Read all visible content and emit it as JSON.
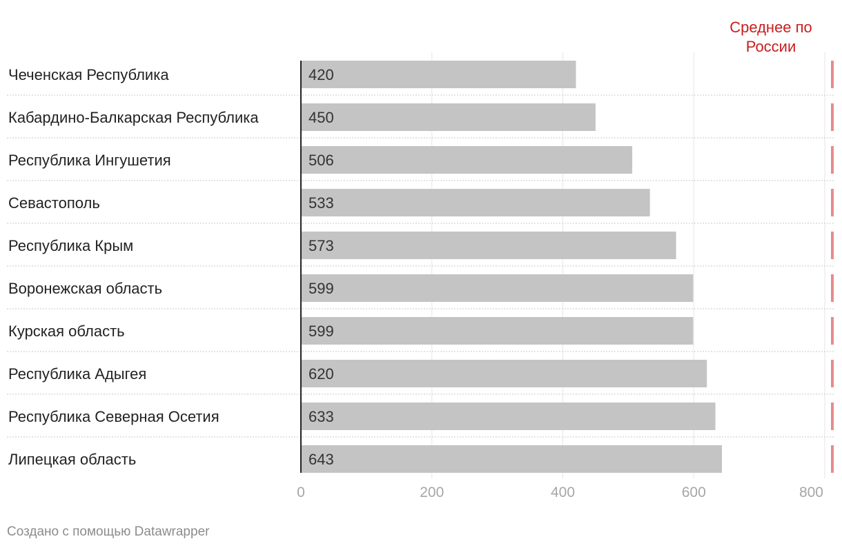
{
  "chart_data": {
    "type": "bar",
    "orientation": "horizontal",
    "categories": [
      "Чеченская Республика",
      "Кабардино-Балкарская Республика",
      "Республика Ингушетия",
      "Севастополь",
      "Республика Крым",
      "Воронежская область",
      "Курская область",
      "Республика Адыгея",
      "Республика Северная Осетия",
      "Липецкая область"
    ],
    "values": [
      420,
      450,
      506,
      533,
      573,
      599,
      599,
      620,
      633,
      643
    ],
    "xlim": [
      0,
      800
    ],
    "x_ticks": [
      "0",
      "200",
      "400",
      "600",
      "800"
    ],
    "grid": true,
    "reference_line": {
      "label": "Среднее по\nРоссии",
      "color": "#c71e1d"
    },
    "bar_color": "#c4c4c4"
  },
  "footer": "Создано с помощью Datawrapper"
}
